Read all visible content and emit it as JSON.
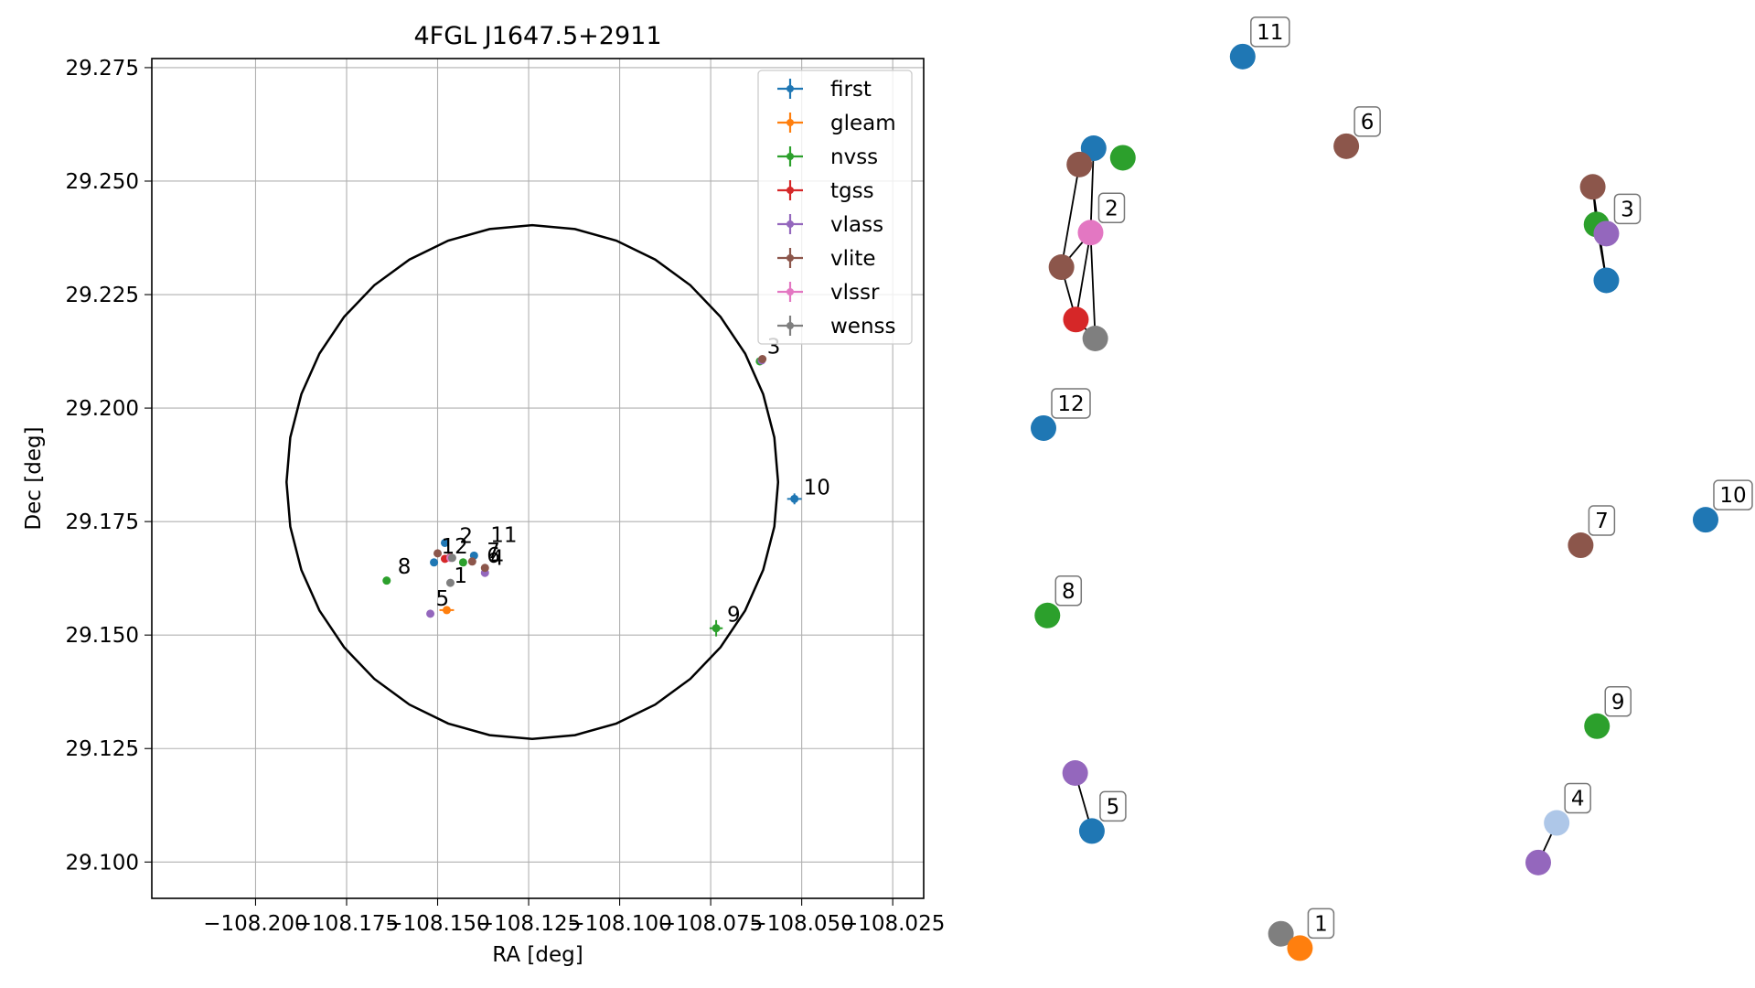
{
  "chart_data": [
    {
      "type": "scatter",
      "title": "4FGL J1647.5+2911",
      "xlabel": "RA [deg]",
      "ylabel": "Dec [deg]",
      "xlim": [
        -108.2285,
        -108.0165
      ],
      "ylim": [
        29.092,
        29.277
      ],
      "xticks": [
        -108.2,
        -108.175,
        -108.15,
        -108.125,
        -108.1,
        -108.075,
        -108.05,
        -108.025
      ],
      "xtick_labels": [
        "−108.200",
        "−108.175",
        "−108.150",
        "−108.125",
        "−108.100",
        "−108.075",
        "−108.050",
        "−108.025"
      ],
      "yticks": [
        29.1,
        29.125,
        29.15,
        29.175,
        29.2,
        29.225,
        29.25,
        29.275
      ],
      "ytick_labels": [
        "29.100",
        "29.125",
        "29.150",
        "29.175",
        "29.200",
        "29.225",
        "29.250",
        "29.275"
      ],
      "grid": true,
      "legend_position": "top-right",
      "ellipse": {
        "center": [
          -108.124,
          29.1837
        ],
        "semi_axes": [
          0.0675,
          0.0566
        ],
        "color": "#000000"
      },
      "series": [
        {
          "name": "first",
          "color": "#1f77b4",
          "points": [
            [
              -108.148,
              29.1703
            ],
            [
              -108.151,
              29.166
            ],
            [
              -108.14,
              29.1675
            ],
            [
              -108.052,
              29.18
            ]
          ]
        },
        {
          "name": "gleam",
          "color": "#ff7f0e",
          "points": [
            [
              -108.1475,
              29.1555
            ]
          ]
        },
        {
          "name": "nvss",
          "color": "#2ca02c",
          "points": [
            [
              -108.143,
              29.166
            ],
            [
              -108.164,
              29.162
            ],
            [
              -108.0735,
              29.1515
            ],
            [
              -108.0615,
              29.2103
            ]
          ]
        },
        {
          "name": "tgss",
          "color": "#d62728",
          "points": [
            [
              -108.148,
              29.1668
            ]
          ]
        },
        {
          "name": "vlass",
          "color": "#9467bd",
          "points": [
            [
              -108.137,
              29.1637
            ],
            [
              -108.152,
              29.1547
            ],
            [
              -108.061,
              29.2105
            ]
          ]
        },
        {
          "name": "vlite",
          "color": "#8c564b",
          "points": [
            [
              -108.15,
              29.168
            ],
            [
              -108.1465,
              29.1672
            ],
            [
              -108.1405,
              29.1662
            ],
            [
              -108.137,
              29.1648
            ],
            [
              -108.0608,
              29.2108
            ]
          ]
        },
        {
          "name": "vlssr",
          "color": "#e377c2",
          "points": [
            [
              -108.1465,
              29.167
            ]
          ]
        },
        {
          "name": "wenss",
          "color": "#7f7f7f",
          "points": [
            [
              -108.1465,
              29.1615
            ],
            [
              -108.146,
              29.167
            ]
          ]
        }
      ],
      "error_bars": [
        {
          "series": "first",
          "point": [
            -108.052,
            29.18
          ],
          "xerr": 0.002,
          "yerr": 0.0012
        },
        {
          "series": "gleam",
          "point": [
            -108.1475,
            29.1555
          ],
          "xerr": 0.002,
          "yerr": 0.0008
        },
        {
          "series": "nvss",
          "point": [
            -108.0735,
            29.1515
          ],
          "xerr": 0.0018,
          "yerr": 0.0018
        }
      ],
      "annotations": [
        {
          "text": "1",
          "x": -108.1455,
          "y": 29.1615
        },
        {
          "text": "2",
          "x": -108.144,
          "y": 29.1703
        },
        {
          "text": "3",
          "x": -108.0595,
          "y": 29.212
        },
        {
          "text": "4",
          "x": -108.1355,
          "y": 29.1655
        },
        {
          "text": "5",
          "x": -108.1505,
          "y": 29.1565
        },
        {
          "text": "6",
          "x": -108.1365,
          "y": 29.166
        },
        {
          "text": "7",
          "x": -108.1365,
          "y": 29.167
        },
        {
          "text": "8",
          "x": -108.161,
          "y": 29.1635
        },
        {
          "text": "9",
          "x": -108.0705,
          "y": 29.153
        },
        {
          "text": "10",
          "x": -108.0495,
          "y": 29.181
        },
        {
          "text": "11",
          "x": -108.1355,
          "y": 29.1705
        },
        {
          "text": "12",
          "x": -108.149,
          "y": 29.168
        }
      ]
    },
    {
      "type": "network",
      "nodes": [
        {
          "id": "a1",
          "color": "#1f77b4",
          "pos": [
            0.0756,
            0.6762
          ]
        },
        {
          "id": "a2",
          "color": "#8c564b",
          "pos": [
            0.0541,
            0.6586
          ]
        },
        {
          "id": "a3",
          "color": "#2ca02c",
          "pos": [
            0.1197,
            0.6659
          ]
        },
        {
          "id": "a4",
          "color": "#e377c2",
          "pos": [
            0.071,
            0.5849
          ],
          "label": "2"
        },
        {
          "id": "a5",
          "color": "#8c564b",
          "pos": [
            0.0271,
            0.5475
          ]
        },
        {
          "id": "a6",
          "color": "#d62728",
          "pos": [
            0.0489,
            0.4908
          ]
        },
        {
          "id": "a7",
          "color": "#7f7f7f",
          "pos": [
            0.0781,
            0.4703
          ]
        },
        {
          "id": "b1",
          "color": "#1f77b4",
          "pos": [
            0.3004,
            0.7754
          ],
          "label": "11"
        },
        {
          "id": "c1",
          "color": "#8c564b",
          "pos": [
            0.4567,
            0.6784
          ],
          "label": "6"
        },
        {
          "id": "d1",
          "color": "#8c564b",
          "pos": [
            0.8284,
            0.6344
          ]
        },
        {
          "id": "d2",
          "color": "#2ca02c",
          "pos": [
            0.8341,
            0.5937
          ]
        },
        {
          "id": "d3",
          "color": "#9467bd",
          "pos": [
            0.8489,
            0.5838
          ],
          "label": "3"
        },
        {
          "id": "d4",
          "color": "#1f77b4",
          "pos": [
            0.8489,
            0.5332
          ]
        },
        {
          "id": "e1",
          "color": "#1f77b4",
          "pos": [
            0.0,
            0.3733
          ],
          "label": "12"
        },
        {
          "id": "f1",
          "color": "#8c564b",
          "pos": [
            0.8102,
            0.2465
          ],
          "label": "7"
        },
        {
          "id": "g1",
          "color": "#1f77b4",
          "pos": [
            0.9986,
            0.2741
          ],
          "label": "10"
        },
        {
          "id": "h1",
          "color": "#2ca02c",
          "pos": [
            0.0059,
            0.1705
          ],
          "label": "8"
        },
        {
          "id": "i1",
          "color": "#2ca02c",
          "pos": [
            0.8348,
            0.0507
          ],
          "label": "9"
        },
        {
          "id": "j1",
          "color": "#9467bd",
          "pos": [
            0.0478,
            0.0
          ]
        },
        {
          "id": "j2",
          "color": "#1f77b4",
          "pos": [
            0.073,
            -0.0628
          ],
          "label": "5"
        },
        {
          "id": "k1",
          "color": "#9467bd",
          "pos": [
            0.7462,
            -0.0969
          ]
        },
        {
          "id": "k2",
          "color": "#aec7e8",
          "pos": [
            0.774,
            -0.054
          ],
          "label": "4"
        },
        {
          "id": "l1",
          "color": "#7f7f7f",
          "pos": [
            0.3581,
            -0.174
          ]
        },
        {
          "id": "l2",
          "color": "#ff7f0e",
          "pos": [
            0.3868,
            -0.1895
          ],
          "label": "1"
        }
      ],
      "edges": [
        [
          "a1",
          "a2"
        ],
        [
          "a1",
          "a4"
        ],
        [
          "a2",
          "a5"
        ],
        [
          "a4",
          "a5"
        ],
        [
          "a4",
          "a6"
        ],
        [
          "a4",
          "a7"
        ],
        [
          "a5",
          "a6"
        ],
        [
          "a6",
          "a7"
        ],
        [
          "d1",
          "d2"
        ],
        [
          "d1",
          "d4"
        ],
        [
          "d2",
          "d3"
        ],
        [
          "d2",
          "d4"
        ],
        [
          "j1",
          "j2"
        ],
        [
          "k1",
          "k2"
        ],
        [
          "l1",
          "l2"
        ]
      ]
    }
  ]
}
